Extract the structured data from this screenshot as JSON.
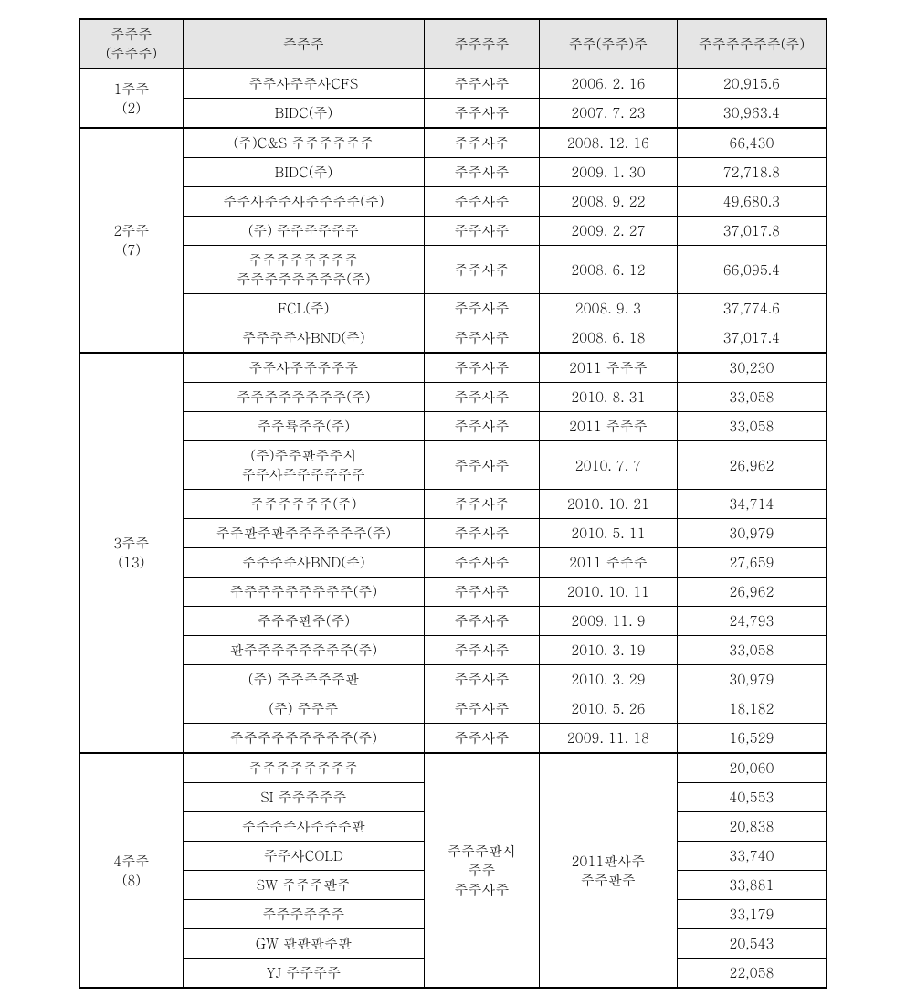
{
  "headers": {
    "col1_line1": "주주주",
    "col1_line2": "(주주주)",
    "col2": "주주주",
    "col3": "주주주주",
    "col4": "주주(주주)주",
    "col5": "주주주주주주(주)"
  },
  "groups": [
    {
      "label_line1": "1주주",
      "label_line2": "(2)",
      "rows": [
        {
          "c2": "주주사주주사CFS",
          "c3": "주주사주",
          "c4": "2006. 2. 16",
          "c5": "20,915.6"
        },
        {
          "c2": "BIDC(주)",
          "c3": "주주사주",
          "c4": "2007. 7. 23",
          "c5": "30,963.4"
        }
      ]
    },
    {
      "label_line1": "2주주",
      "label_line2": "(7)",
      "rows": [
        {
          "c2": "(주)C&S 주주주주주주",
          "c3": "주주사주",
          "c4": "2008. 12. 16",
          "c5": "66,430"
        },
        {
          "c2": "BIDC(주)",
          "c3": "주주사주",
          "c4": "2009. 1. 30",
          "c5": "72,718.8"
        },
        {
          "c2": "주주사주주사주주주주(주)",
          "c3": "주주사주",
          "c4": "2008. 9. 22",
          "c5": "49,680.3"
        },
        {
          "c2": "(주) 주주주주주주",
          "c3": "주주사주",
          "c4": "2009. 2. 27",
          "c5": "37,017.8"
        },
        {
          "c2_line1": "주주주주주주주주",
          "c2_line2": "주주주주주주주주(주)",
          "c3": "주주사주",
          "c4": "2008. 6. 12",
          "c5": "66,095.4"
        },
        {
          "c2": "FCL(주)",
          "c3": "주주사주",
          "c4": "2008. 9. 3",
          "c5": "37,774.6"
        },
        {
          "c2": "주주주주사BND(주)",
          "c3": "주주사주",
          "c4": "2008. 6. 18",
          "c5": "37,017.4"
        }
      ]
    },
    {
      "label_line1": "3주주",
      "label_line2": "(13)",
      "rows": [
        {
          "c2": "주주사주주주주주",
          "c3": "주주사주",
          "c4": "2011 주주주",
          "c5": "30,230"
        },
        {
          "c2": "주주주주주주주주(주)",
          "c3": "주주사주",
          "c4": "2010. 8. 31",
          "c5": "33,058"
        },
        {
          "c2": "주주륙주주(주)",
          "c3": "주주사주",
          "c4": "2011 주주주",
          "c5": "33,058"
        },
        {
          "c2_line1": "(주)주주판주주시",
          "c2_line2": "주주사주주주주주주",
          "c3": "주주사주",
          "c4": "2010. 7. 7",
          "c5": "26,962"
        },
        {
          "c2": "주주주주주주(주)",
          "c3": "주주사주",
          "c4": "2010. 10. 21",
          "c5": "34,714"
        },
        {
          "c2": "주주판주판주주주주주주(주)",
          "c3": "주주사주",
          "c4": "2010. 5. 11",
          "c5": "30,979"
        },
        {
          "c2": "주주주주사BND(주)",
          "c3": "주주사주",
          "c4": "2011 주주주",
          "c5": "27,659"
        },
        {
          "c2": "주주주주주주주주주(주)",
          "c3": "주주사주",
          "c4": "2010. 10. 11",
          "c5": "26,962"
        },
        {
          "c2": "주주주판주(주)",
          "c3": "주주사주",
          "c4": "2009. 11. 9",
          "c5": "24,793"
        },
        {
          "c2": "판주주주주주주주주(주)",
          "c3": "주주사주",
          "c4": "2010. 3. 19",
          "c5": "33,058"
        },
        {
          "c2": "(주) 주주주주주판",
          "c3": "주주사주",
          "c4": "2010. 3. 29",
          "c5": "30,979"
        },
        {
          "c2": "(주) 주주주",
          "c3": "주주사주",
          "c4": "2010. 5. 26",
          "c5": "18,182"
        },
        {
          "c2": "주주주주주주주주주(주)",
          "c3": "주주사주",
          "c4": "2009. 11. 18",
          "c5": "16,529"
        }
      ]
    },
    {
      "label_line1": "4주주",
      "label_line2": "(8)",
      "merged_c3_line1": "주주주판시",
      "merged_c3_line2": "주주",
      "merged_c3_line3": "주주사주",
      "merged_c4_line1": "2011판사주",
      "merged_c4_line2": "주주판주",
      "rows": [
        {
          "c2": "주주주주주주주주",
          "c5": "20,060"
        },
        {
          "c2": "SI 주주주주주",
          "c5": "40,553"
        },
        {
          "c2": "주주주주사주주주판",
          "c5": "20,838"
        },
        {
          "c2": "주주사COLD",
          "c5": "33,740"
        },
        {
          "c2": "SW 주주주판주",
          "c5": "33,881"
        },
        {
          "c2": "주주주주주주",
          "c5": "33,179"
        },
        {
          "c2": "GW 판판판주판",
          "c5": "20,543"
        },
        {
          "c2": "YJ 주주주주",
          "c5": "22,058"
        }
      ]
    }
  ]
}
